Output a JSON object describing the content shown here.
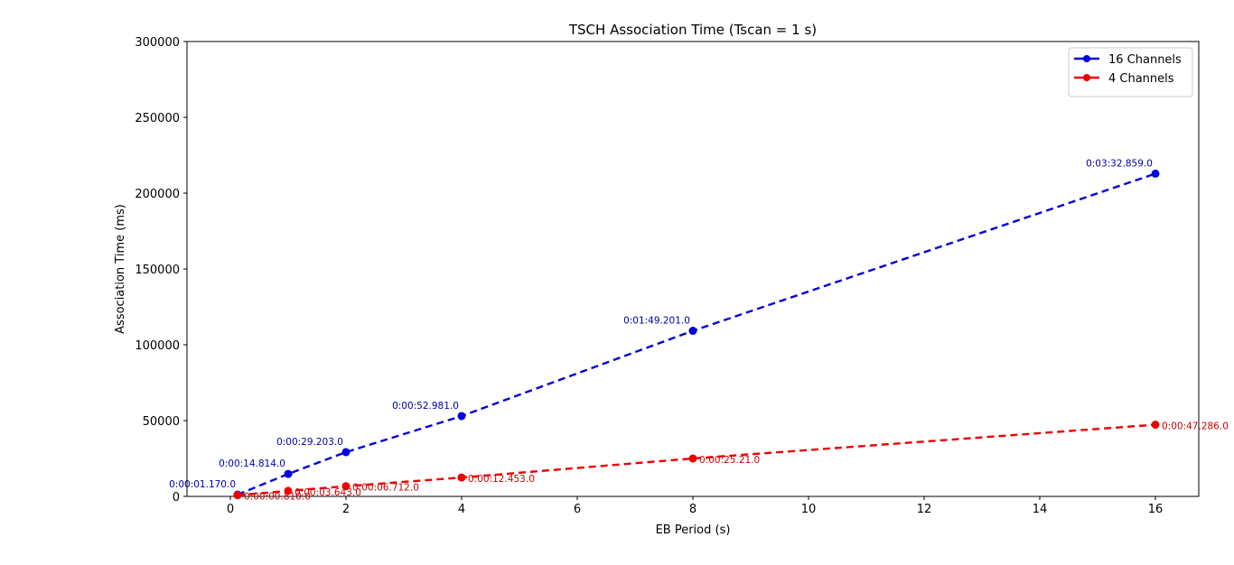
{
  "chart_data": {
    "type": "line",
    "title": "TSCH Association Time (Tscan = 1 s)",
    "xlabel": "EB Period (s)",
    "ylabel": "Association Time (ms)",
    "xlim": [
      -0.75,
      16.75
    ],
    "ylim": [
      0,
      300000
    ],
    "xticks": [
      0,
      2,
      4,
      6,
      8,
      10,
      12,
      14,
      16
    ],
    "yticks": [
      0,
      50000,
      100000,
      150000,
      200000,
      250000,
      300000
    ],
    "grid": false,
    "legend_position": "top-right",
    "series": [
      {
        "name": "16 Channels",
        "color": "#0000dd",
        "label_color": "#0000aa",
        "line_style": "dashed",
        "marker": "circle",
        "label_position": "above-left",
        "x": [
          0.125,
          1,
          2,
          4,
          8,
          16
        ],
        "y": [
          1170,
          14814,
          29203,
          52981,
          109201,
          212859
        ],
        "labels": [
          "0:00:01.170.0",
          "0:00:14.814.0",
          "0:00:29.203.0",
          "0:00:52.981.0",
          "0:01:49.201.0",
          "0:03:32.859.0"
        ]
      },
      {
        "name": "4 Channels",
        "color": "#ee0000",
        "label_color": "#cc0000",
        "line_style": "dashed",
        "marker": "circle",
        "label_position": "right",
        "x": [
          0.125,
          1,
          2,
          4,
          8,
          16
        ],
        "y": [
          810,
          3643,
          6712,
          12453,
          25021,
          47286
        ],
        "labels": [
          "0:00:00.810.0",
          "0:00:03.643.0",
          "0:00:06.712.0",
          "0:00:12.453.0",
          "0:00:25.21.0",
          "0:00:47.286.0"
        ]
      }
    ]
  }
}
